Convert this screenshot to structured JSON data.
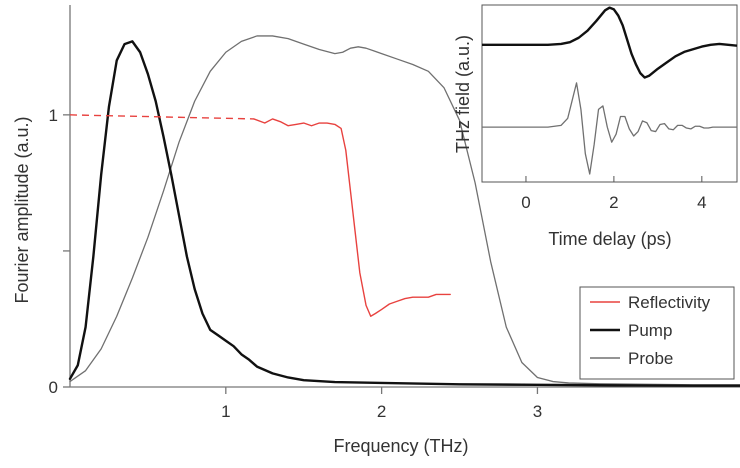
{
  "chart_data": [
    {
      "type": "line",
      "xlabel": "Frequency (THz)",
      "ylabel": "Fourier amplitude (a.u.)",
      "xlim": [
        0,
        4.3
      ],
      "ylim": [
        0,
        1.4
      ],
      "xticks": [
        {
          "value": 1,
          "label": "1"
        },
        {
          "value": 2,
          "label": "2"
        },
        {
          "value": 3,
          "label": "3"
        }
      ],
      "yticks": [
        {
          "value": 0,
          "label": "0"
        },
        {
          "value": 0.5,
          "label": ""
        },
        {
          "value": 1,
          "label": "1"
        }
      ],
      "legend_position": "bottom-right",
      "series": [
        {
          "name": "Reflectivity",
          "color": "#e8423f",
          "dashed_segment": {
            "x": [
              0.0,
              1.18
            ],
            "y": [
              1.0,
              0.985
            ]
          },
          "x": [
            1.18,
            1.25,
            1.3,
            1.35,
            1.4,
            1.45,
            1.5,
            1.55,
            1.6,
            1.65,
            1.7,
            1.74,
            1.77,
            1.8,
            1.83,
            1.86,
            1.9,
            1.93,
            1.96,
            2.0,
            2.05,
            2.1,
            2.15,
            2.2,
            2.25,
            2.3,
            2.35,
            2.44
          ],
          "y": [
            0.985,
            0.97,
            0.985,
            0.975,
            0.96,
            0.965,
            0.97,
            0.96,
            0.97,
            0.97,
            0.965,
            0.95,
            0.87,
            0.72,
            0.57,
            0.42,
            0.3,
            0.26,
            0.27,
            0.285,
            0.305,
            0.315,
            0.325,
            0.33,
            0.33,
            0.33,
            0.34,
            0.34
          ]
        },
        {
          "name": "Pump",
          "color": "#111111",
          "x": [
            0.0,
            0.05,
            0.1,
            0.15,
            0.2,
            0.25,
            0.3,
            0.35,
            0.4,
            0.45,
            0.5,
            0.55,
            0.6,
            0.65,
            0.7,
            0.75,
            0.8,
            0.85,
            0.9,
            0.95,
            1.0,
            1.05,
            1.1,
            1.15,
            1.2,
            1.3,
            1.4,
            1.5,
            1.7,
            2.0,
            2.5,
            3.0,
            3.5,
            4.0,
            4.3
          ],
          "y": [
            0.03,
            0.08,
            0.22,
            0.48,
            0.78,
            1.03,
            1.2,
            1.26,
            1.27,
            1.23,
            1.15,
            1.05,
            0.92,
            0.78,
            0.63,
            0.48,
            0.36,
            0.27,
            0.21,
            0.19,
            0.17,
            0.15,
            0.12,
            0.1,
            0.075,
            0.05,
            0.035,
            0.025,
            0.018,
            0.015,
            0.01,
            0.008,
            0.006,
            0.005,
            0.005
          ]
        },
        {
          "name": "Probe",
          "color": "#707070",
          "x": [
            0.0,
            0.1,
            0.2,
            0.3,
            0.4,
            0.5,
            0.6,
            0.7,
            0.8,
            0.9,
            1.0,
            1.1,
            1.2,
            1.3,
            1.4,
            1.5,
            1.6,
            1.7,
            1.75,
            1.8,
            1.85,
            1.9,
            1.95,
            2.0,
            2.1,
            2.2,
            2.3,
            2.4,
            2.5,
            2.6,
            2.7,
            2.8,
            2.9,
            3.0,
            3.1,
            3.2,
            3.4,
            3.7,
            4.0,
            4.3
          ],
          "y": [
            0.02,
            0.06,
            0.14,
            0.26,
            0.4,
            0.55,
            0.72,
            0.9,
            1.05,
            1.16,
            1.23,
            1.27,
            1.29,
            1.29,
            1.28,
            1.26,
            1.24,
            1.225,
            1.23,
            1.245,
            1.25,
            1.245,
            1.235,
            1.225,
            1.205,
            1.185,
            1.16,
            1.1,
            0.98,
            0.75,
            0.46,
            0.22,
            0.09,
            0.035,
            0.02,
            0.015,
            0.012,
            0.01,
            0.008,
            0.008
          ]
        }
      ]
    },
    {
      "type": "line",
      "xlabel": "Time delay (ps)",
      "ylabel": "THz field (a.u.)",
      "xlim": [
        -1,
        4.8
      ],
      "ylim": [
        -1,
        1
      ],
      "xticks": [
        {
          "value": 0,
          "label": "0"
        },
        {
          "value": 2,
          "label": "2"
        },
        {
          "value": 4,
          "label": "4"
        }
      ],
      "series": [
        {
          "name": "",
          "color": "#111111",
          "offset": 0.55,
          "x": [
            -1.0,
            -0.5,
            0.0,
            0.5,
            0.8,
            1.0,
            1.2,
            1.4,
            1.6,
            1.8,
            1.9,
            2.0,
            2.1,
            2.2,
            2.3,
            2.4,
            2.5,
            2.6,
            2.7,
            2.8,
            3.0,
            3.2,
            3.4,
            3.6,
            3.8,
            4.0,
            4.2,
            4.4,
            4.6,
            4.8
          ],
          "y": [
            0.0,
            0.0,
            0.0,
            0.0,
            0.01,
            0.03,
            0.08,
            0.16,
            0.27,
            0.39,
            0.42,
            0.4,
            0.33,
            0.22,
            0.06,
            -0.1,
            -0.22,
            -0.32,
            -0.37,
            -0.35,
            -0.27,
            -0.2,
            -0.13,
            -0.08,
            -0.05,
            -0.02,
            0.0,
            0.01,
            0.0,
            -0.01
          ]
        },
        {
          "name": "",
          "color": "#707070",
          "offset": -0.38,
          "x": [
            -1.0,
            0.5,
            0.8,
            0.95,
            1.05,
            1.15,
            1.25,
            1.35,
            1.45,
            1.55,
            1.65,
            1.75,
            1.85,
            1.95,
            2.05,
            2.15,
            2.25,
            2.35,
            2.45,
            2.55,
            2.65,
            2.75,
            2.85,
            2.95,
            3.05,
            3.15,
            3.25,
            3.35,
            3.45,
            3.55,
            3.65,
            3.75,
            3.85,
            3.95,
            4.05,
            4.15,
            4.25,
            4.35,
            4.45,
            4.55,
            4.65,
            4.8
          ],
          "y": [
            0.0,
            0.0,
            0.02,
            0.1,
            0.3,
            0.5,
            0.2,
            -0.3,
            -0.53,
            -0.2,
            0.2,
            0.24,
            0.0,
            -0.17,
            -0.08,
            0.12,
            0.12,
            -0.02,
            -0.1,
            -0.05,
            0.07,
            0.05,
            -0.04,
            -0.05,
            0.03,
            0.04,
            -0.02,
            -0.03,
            0.02,
            0.02,
            -0.01,
            -0.02,
            0.01,
            0.01,
            -0.01,
            -0.01,
            0.0,
            0.0,
            0.0,
            0.0,
            0.0,
            0.0
          ]
        }
      ]
    }
  ]
}
